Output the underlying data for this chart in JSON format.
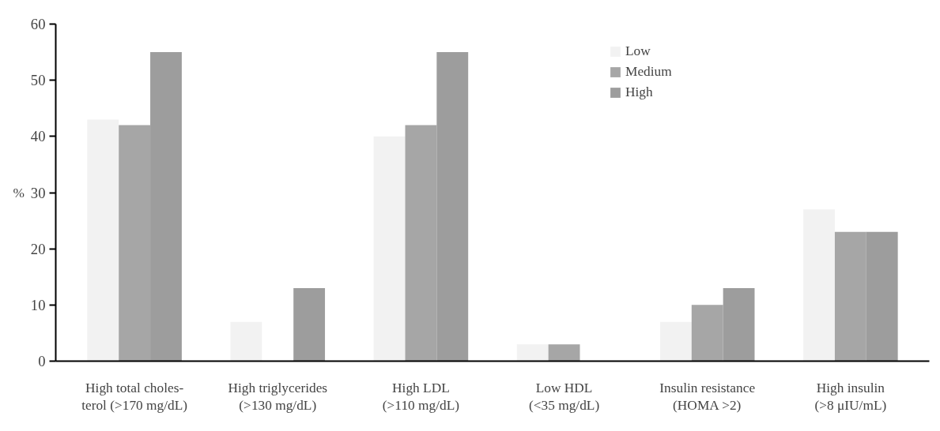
{
  "chart_data": {
    "type": "bar",
    "ylabel": "%",
    "categories": [
      "High total choles-\nterol (>170 mg/dL)",
      "High triglycerides\n(>130 mg/dL)",
      "High LDL\n(>110 mg/dL)",
      "Low HDL\n(<35 mg/dL)",
      "Insulin resistance\n(HOMA >2)",
      "High insulin\n(>8 μIU/mL)"
    ],
    "series": [
      {
        "name": "Low",
        "color": "#f2f2f2",
        "values": [
          43,
          7,
          40,
          3,
          7,
          27
        ]
      },
      {
        "name": "Medium",
        "color": "#a6a6a6",
        "values": [
          42,
          0,
          42,
          3,
          10,
          23
        ]
      },
      {
        "name": "High",
        "color": "#9d9d9d",
        "values": [
          55,
          13,
          55,
          0,
          13,
          23
        ]
      }
    ],
    "ylim": [
      0,
      60
    ],
    "yticks": [
      0,
      10,
      20,
      30,
      40,
      50,
      60
    ],
    "grid": false,
    "legend": "top right"
  }
}
